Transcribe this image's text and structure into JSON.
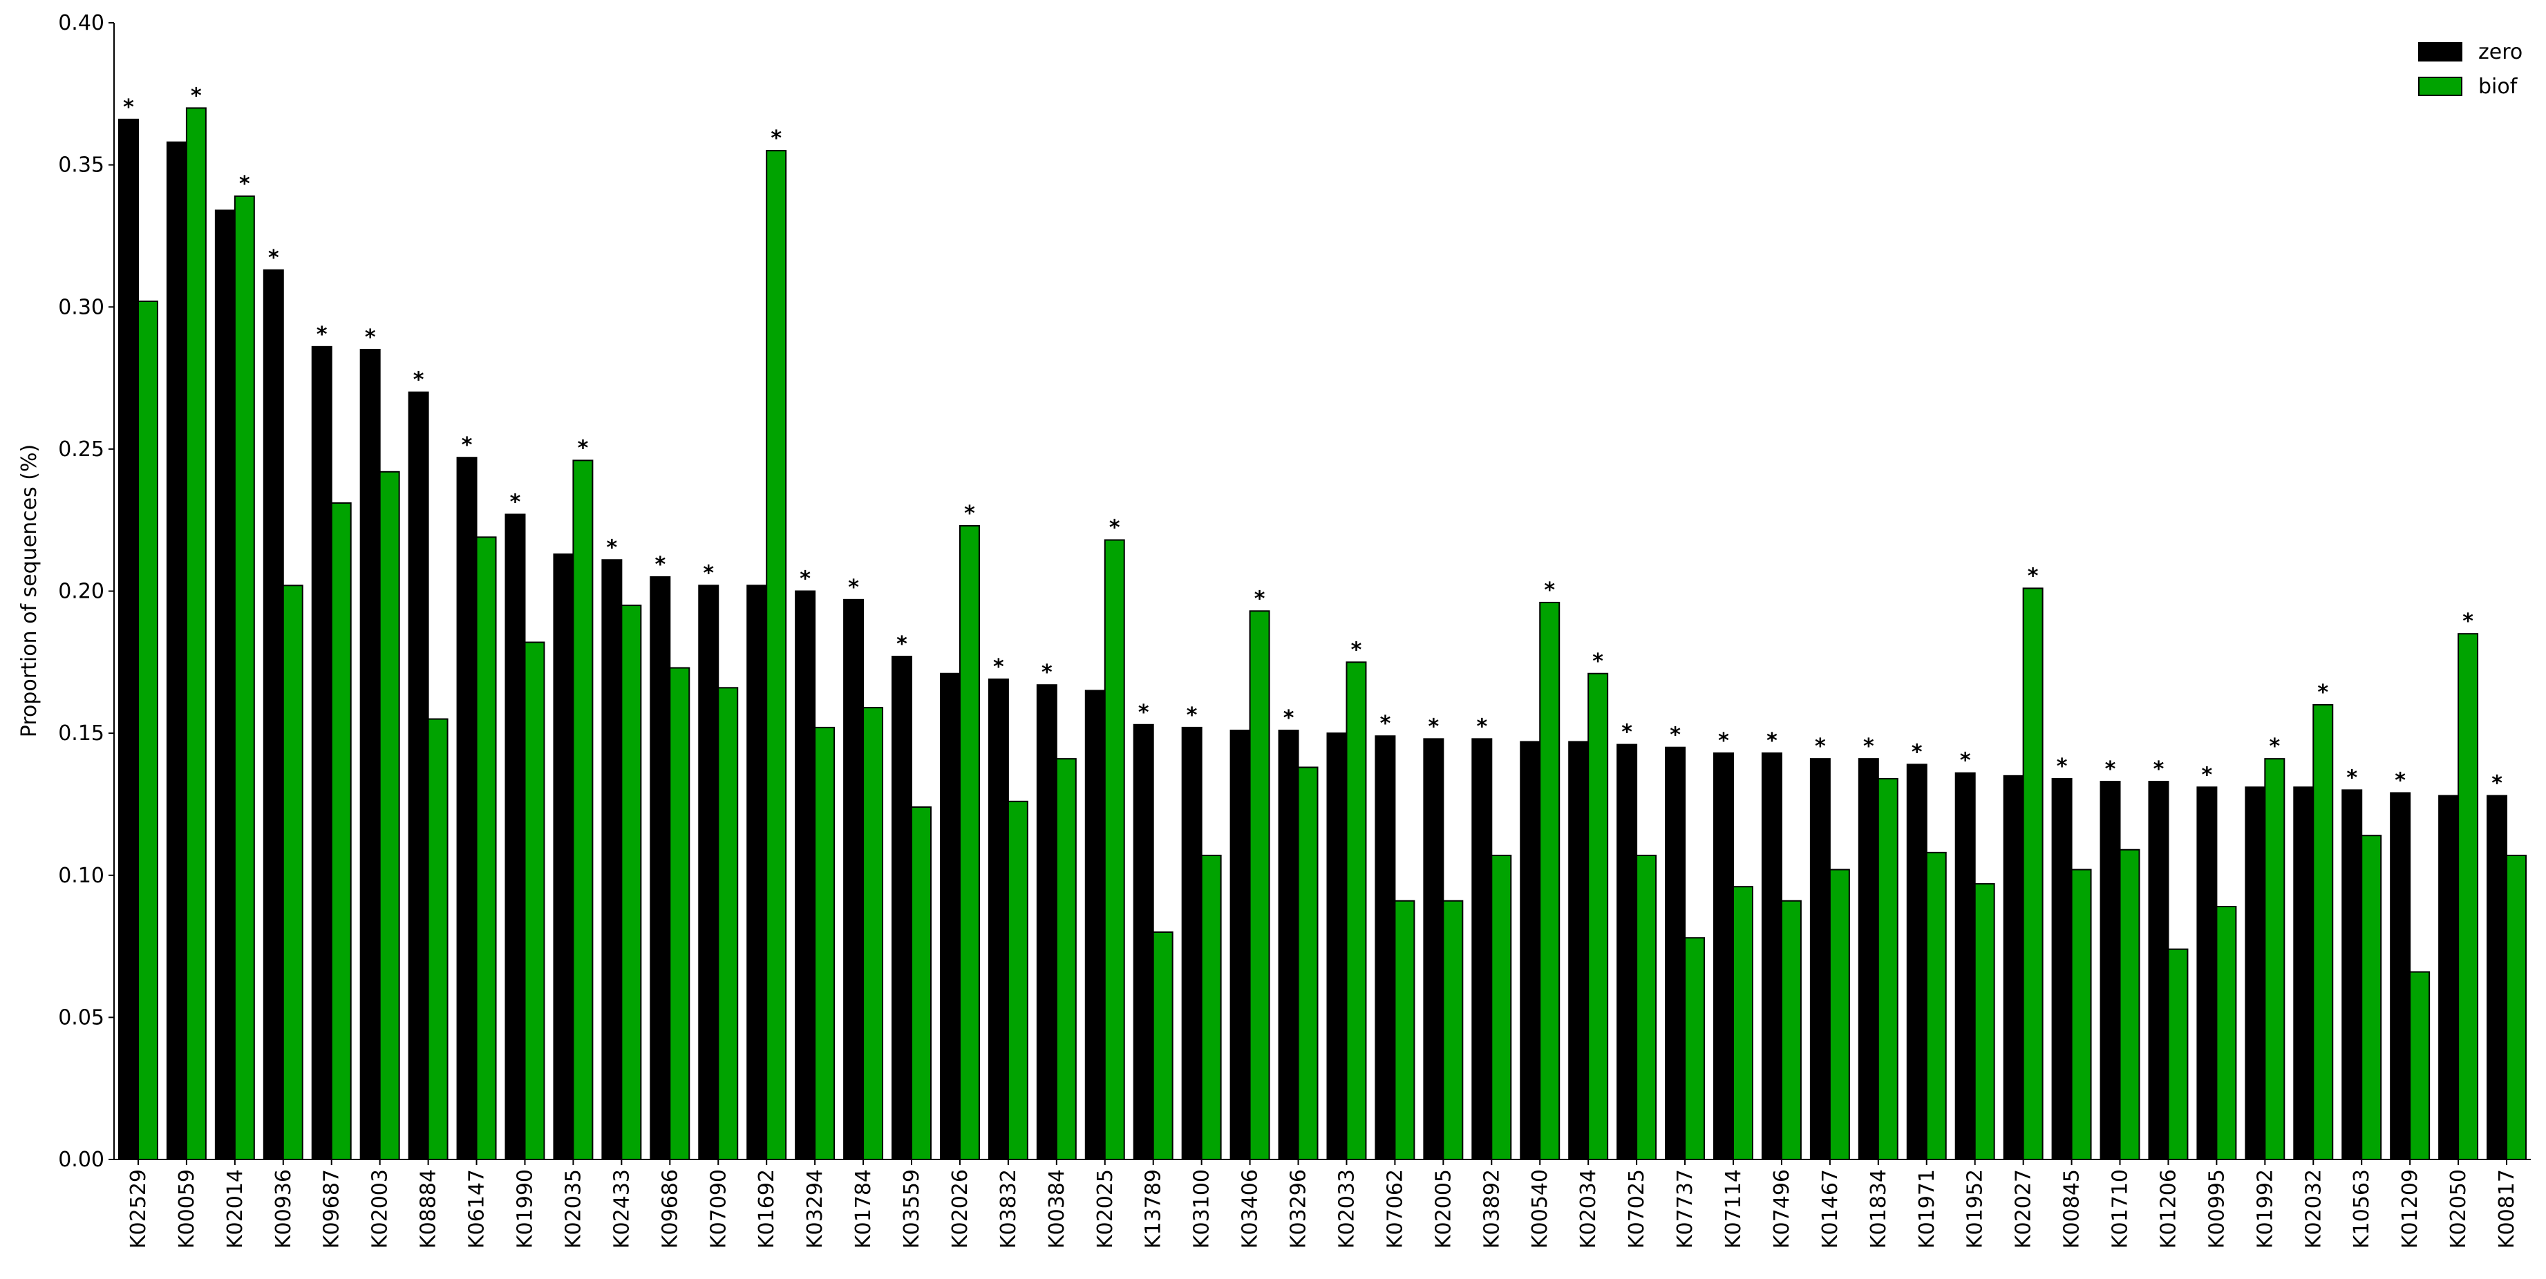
{
  "chart_data": {
    "type": "bar",
    "y_label": "Proportion of sequences (%)",
    "categories": [
      "K02529",
      "K00059",
      "K02014",
      "K00936",
      "K09687",
      "K02003",
      "K08884",
      "K06147",
      "K01990",
      "K02035",
      "K02433",
      "K09686",
      "K07090",
      "K01692",
      "K03294",
      "K01784",
      "K03559",
      "K02026",
      "K03832",
      "K00384",
      "K02025",
      "K13789",
      "K03100",
      "K03406",
      "K03296",
      "K02033",
      "K07062",
      "K02005",
      "K03892",
      "K00540",
      "K02034",
      "K07025",
      "K07737",
      "K07114",
      "K07496",
      "K01467",
      "K01834",
      "K01971",
      "K01952",
      "K02027",
      "K00845",
      "K01710",
      "K01206",
      "K00995",
      "K01992",
      "K02032",
      "K10563",
      "K01209",
      "K02050",
      "K00817"
    ],
    "series": [
      {
        "name": "zero",
        "color": "#000000",
        "values": [
          0.366,
          0.358,
          0.334,
          0.313,
          0.286,
          0.285,
          0.27,
          0.247,
          0.227,
          0.213,
          0.211,
          0.205,
          0.202,
          0.202,
          0.2,
          0.197,
          0.177,
          0.171,
          0.169,
          0.167,
          0.165,
          0.153,
          0.152,
          0.151,
          0.151,
          0.15,
          0.149,
          0.148,
          0.148,
          0.147,
          0.147,
          0.146,
          0.145,
          0.143,
          0.143,
          0.141,
          0.141,
          0.139,
          0.136,
          0.135,
          0.134,
          0.133,
          0.133,
          0.131,
          0.131,
          0.131,
          0.13,
          0.129,
          0.128,
          0.128
        ]
      },
      {
        "name": "biof",
        "color": "#00a300",
        "values": [
          0.302,
          0.37,
          0.339,
          0.202,
          0.231,
          0.242,
          0.155,
          0.219,
          0.182,
          0.246,
          0.195,
          0.173,
          0.166,
          0.355,
          0.152,
          0.159,
          0.124,
          0.223,
          0.126,
          0.141,
          0.218,
          0.08,
          0.107,
          0.193,
          0.138,
          0.175,
          0.091,
          0.091,
          0.107,
          0.196,
          0.171,
          0.107,
          0.078,
          0.096,
          0.091,
          0.102,
          0.134,
          0.108,
          0.097,
          0.201,
          0.102,
          0.109,
          0.074,
          0.089,
          0.141,
          0.16,
          0.114,
          0.066,
          0.185,
          0.107
        ]
      }
    ],
    "significance": [
      "*",
      "*",
      "*",
      "*",
      "*",
      "*",
      "*",
      "*",
      "*",
      "*",
      "*",
      "*",
      "*",
      "*",
      "*",
      "*",
      "*",
      "*",
      "*",
      "*",
      "*",
      "*",
      "*",
      "*",
      "*",
      "*",
      "*",
      "*",
      "*",
      "*",
      "*",
      "*",
      "*",
      "*",
      "*",
      "*",
      "*",
      "*",
      "*",
      "*",
      "*",
      "*",
      "*",
      "*",
      "*",
      "*",
      "*",
      "*",
      "*",
      "*"
    ],
    "ylim": [
      0,
      0.4
    ],
    "yticks": [
      {
        "value": 0,
        "label": "0.00"
      },
      0.05,
      {
        "value": 0.1,
        "label": "0.10"
      },
      0.15,
      {
        "value": 0.2,
        "label": "0.20"
      },
      0.25,
      {
        "value": 0.3,
        "label": "0.30"
      },
      0.35,
      {
        "value": 0.4,
        "label": "0.40"
      }
    ],
    "legend": "upper right"
  }
}
